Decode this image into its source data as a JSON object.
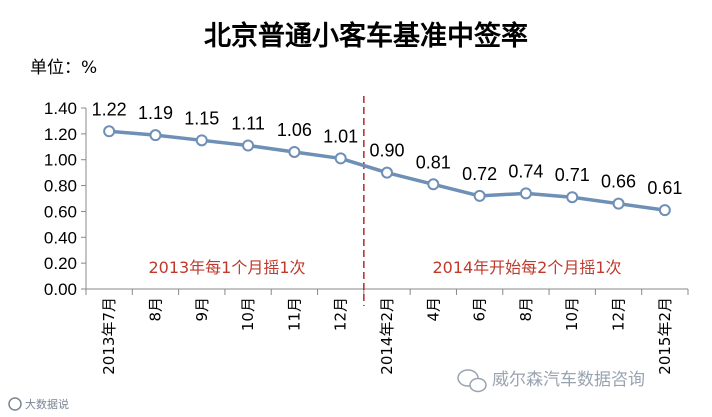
{
  "chart_data": {
    "type": "line",
    "title": "北京普通小客车基准中签率",
    "unit_label": "单位：%",
    "categories": [
      "2013年7月",
      "8月",
      "9月",
      "10月",
      "11月",
      "12月",
      "2014年2月",
      "4月",
      "6月",
      "8月",
      "10月",
      "12月",
      "2015年2月"
    ],
    "series": [
      {
        "values": [
          1.22,
          1.19,
          1.15,
          1.11,
          1.06,
          1.01,
          0.9,
          0.81,
          0.72,
          0.74,
          0.71,
          0.66,
          0.61
        ]
      }
    ],
    "data_labels": [
      "1.22",
      "1.19",
      "1.15",
      "1.11",
      "1.06",
      "1.01",
      "0.90",
      "0.81",
      "0.72",
      "0.74",
      "0.71",
      "0.66",
      "0.61"
    ],
    "y_ticks": [
      "0.00",
      "0.20",
      "0.40",
      "0.60",
      "0.80",
      "1.00",
      "1.20",
      "1.40"
    ],
    "ylim": [
      0,
      1.4
    ],
    "grid": false,
    "divider_after_index": 5,
    "annotations": [
      "2013年每1个月摇1次",
      "2014年开始每2个月摇1次"
    ],
    "colors": {
      "line": "#6e8fb6",
      "marker_fill": "#ffffff",
      "divider": "#b02a2a",
      "annotation": "#c0392b"
    }
  },
  "watermark": {
    "text": "威尔森汽车数据咨询",
    "small_text": "大数据说"
  }
}
